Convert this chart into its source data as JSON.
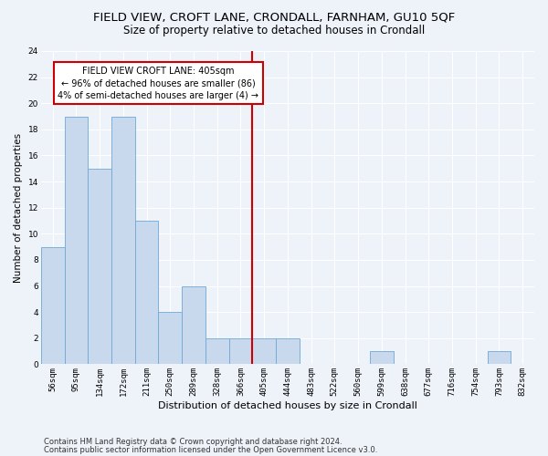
{
  "title1": "FIELD VIEW, CROFT LANE, CRONDALL, FARNHAM, GU10 5QF",
  "title2": "Size of property relative to detached houses in Crondall",
  "xlabel": "Distribution of detached houses by size in Crondall",
  "ylabel": "Number of detached properties",
  "categories": [
    "56sqm",
    "95sqm",
    "134sqm",
    "172sqm",
    "211sqm",
    "250sqm",
    "289sqm",
    "328sqm",
    "366sqm",
    "405sqm",
    "444sqm",
    "483sqm",
    "522sqm",
    "560sqm",
    "599sqm",
    "638sqm",
    "677sqm",
    "716sqm",
    "754sqm",
    "793sqm",
    "832sqm"
  ],
  "values": [
    9,
    19,
    15,
    19,
    11,
    4,
    6,
    2,
    2,
    2,
    2,
    0,
    0,
    0,
    1,
    0,
    0,
    0,
    0,
    1,
    0
  ],
  "bar_color": "#c8d9ee",
  "bar_edge_color": "#6fa8d6",
  "highlight_index": 9,
  "vline_color": "#cc0000",
  "annotation_line1": "FIELD VIEW CROFT LANE: 405sqm",
  "annotation_line2": "← 96% of detached houses are smaller (86)",
  "annotation_line3": "4% of semi-detached houses are larger (4) →",
  "annotation_box_color": "#cc0000",
  "ylim": [
    0,
    24
  ],
  "yticks": [
    0,
    2,
    4,
    6,
    8,
    10,
    12,
    14,
    16,
    18,
    20,
    22,
    24
  ],
  "footnote1": "Contains HM Land Registry data © Crown copyright and database right 2024.",
  "footnote2": "Contains public sector information licensed under the Open Government Licence v3.0.",
  "background_color": "#eef2f9",
  "grid_color": "#ffffff",
  "title1_fontsize": 9.5,
  "title2_fontsize": 8.5,
  "xlabel_fontsize": 8,
  "ylabel_fontsize": 7.5,
  "tick_fontsize": 6.5,
  "annot_fontsize": 7,
  "footnote_fontsize": 6
}
